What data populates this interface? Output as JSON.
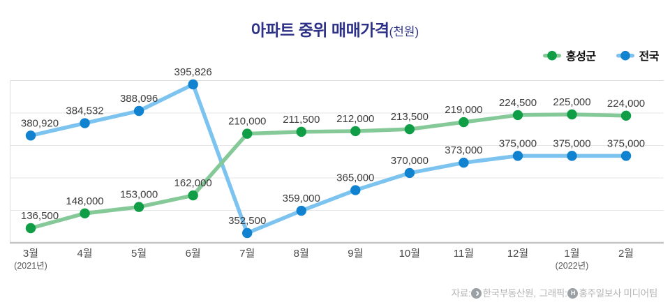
{
  "title": {
    "main": "아파트 중위 매매가격",
    "unit": "(천원)"
  },
  "colors": {
    "title": "#2c3187",
    "hongseong_line": "#85c998",
    "hongseong_dot": "#0f9d45",
    "national_line": "#7cc4ef",
    "national_dot": "#1182cf",
    "grid": "#e6e6e6",
    "axis": "#c4c4c4",
    "value_label": "#3b3b3b",
    "tick_label": "#474747",
    "footer_text": "#b3b3b3"
  },
  "legend": [
    {
      "key": "hongseong",
      "label": "홍성군"
    },
    {
      "key": "national",
      "label": "전국"
    }
  ],
  "chart_data": {
    "type": "line",
    "title": "아파트 중위 매매가격(천원)",
    "x": [
      "3월",
      "4월",
      "5월",
      "6월",
      "7월",
      "8월",
      "9월",
      "10월",
      "11월",
      "12월",
      "1월",
      "2월"
    ],
    "x_notes": [
      {
        "index": 0,
        "text": "(2021년)"
      },
      {
        "index": 10,
        "text": "(2022년)"
      }
    ],
    "series": [
      {
        "key": "national",
        "name": "전국",
        "line_color": "#7cc4ef",
        "dot_color": "#1182cf",
        "values": [
          380920,
          384532,
          388096,
          395826,
          352500,
          359000,
          365000,
          370000,
          373000,
          375000,
          375000,
          375000
        ]
      },
      {
        "key": "hongseong",
        "name": "홍성군",
        "line_color": "#85c998",
        "dot_color": "#0f9d45",
        "values": [
          136500,
          148000,
          153000,
          162000,
          210000,
          211500,
          212000,
          213500,
          219000,
          224500,
          225000,
          224000
        ]
      }
    ],
    "value_labels": true,
    "grid": "horizontal",
    "legend_position": "top-right",
    "layout_hint": "news infographic: each series drawn on its own visual y-scale so the lines cross at 7월"
  },
  "footer": {
    "source_label": "자료:",
    "source": "한국부동산원,",
    "graphic_label": "그래픽:",
    "credit": "홍주일보사 미디어팀",
    "source_icon": "krea-logo-icon",
    "credit_icon": "hongjuilbo-logo-icon"
  }
}
